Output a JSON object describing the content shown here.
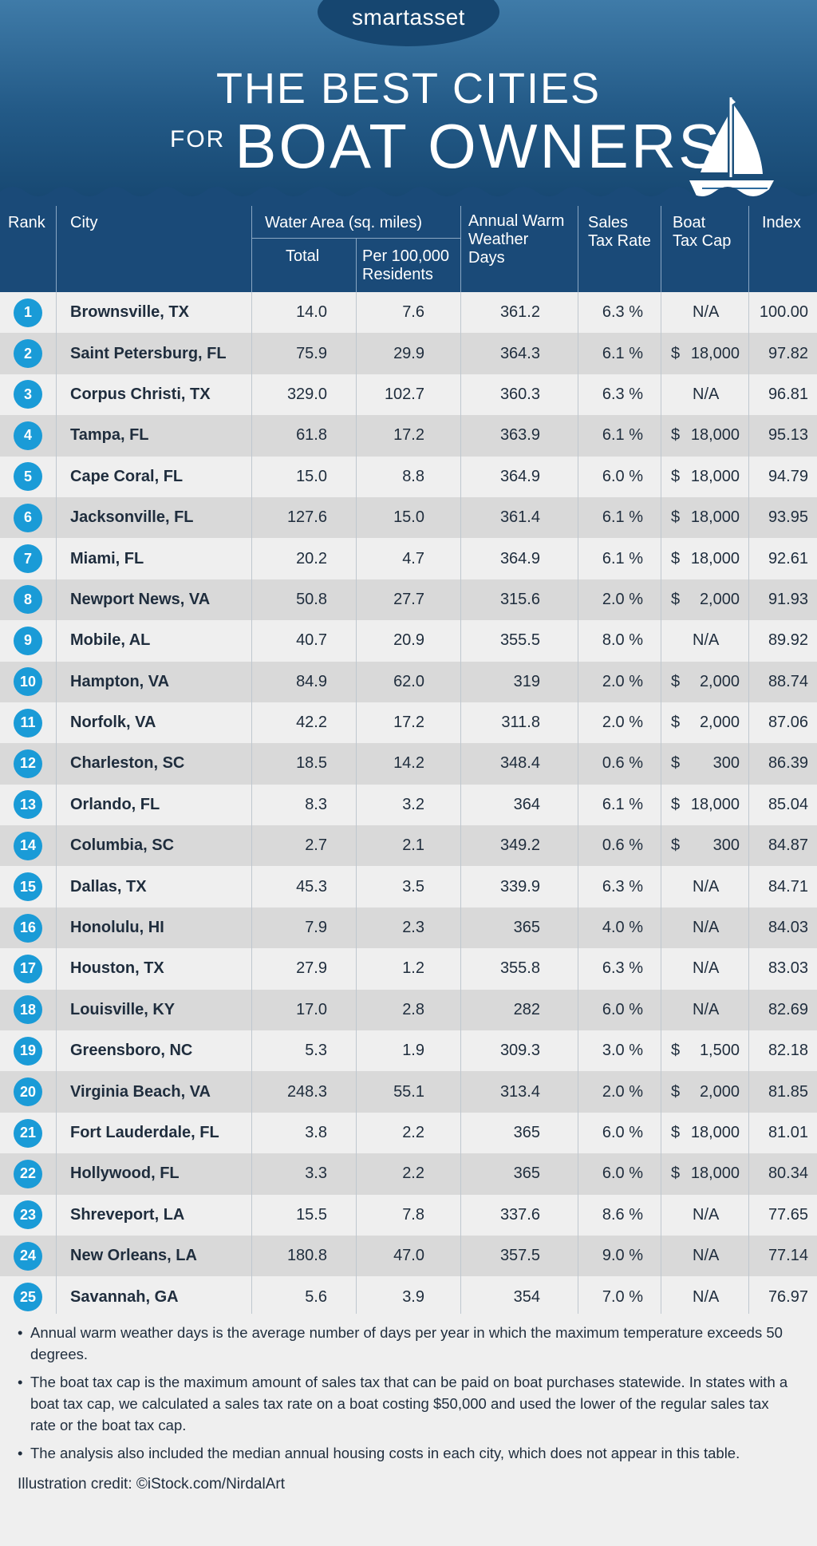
{
  "brand": "smartasset",
  "title": {
    "line1": "THE BEST CITIES",
    "line2_small": "FOR",
    "line2_big": "BOAT OWNERS"
  },
  "headers": {
    "rank": "Rank",
    "city": "City",
    "water_area": "Water Area (sq. miles)",
    "total": "Total",
    "per100k": [
      "Per 100,000",
      "Residents"
    ],
    "warm_days": [
      "Annual Warm",
      "Weather",
      "Days"
    ],
    "sales_tax": [
      "Sales",
      "Tax Rate"
    ],
    "boat_tax_cap": [
      "Boat",
      "Tax Cap"
    ],
    "index": "Index"
  },
  "rows": [
    {
      "rank": "1",
      "city": "Brownsville, TX",
      "total": "14.0",
      "per100k": "7.6",
      "warm": "361.2",
      "tax": "6.3 %",
      "cap_sym": "",
      "cap": "N/A",
      "index": "100.00"
    },
    {
      "rank": "2",
      "city": "Saint Petersburg, FL",
      "total": "75.9",
      "per100k": "29.9",
      "warm": "364.3",
      "tax": "6.1 %",
      "cap_sym": "$",
      "cap": "18,000",
      "index": "97.82"
    },
    {
      "rank": "3",
      "city": "Corpus Christi, TX",
      "total": "329.0",
      "per100k": "102.7",
      "warm": "360.3",
      "tax": "6.3 %",
      "cap_sym": "",
      "cap": "N/A",
      "index": "96.81"
    },
    {
      "rank": "4",
      "city": "Tampa, FL",
      "total": "61.8",
      "per100k": "17.2",
      "warm": "363.9",
      "tax": "6.1 %",
      "cap_sym": "$",
      "cap": "18,000",
      "index": "95.13"
    },
    {
      "rank": "5",
      "city": "Cape Coral, FL",
      "total": "15.0",
      "per100k": "8.8",
      "warm": "364.9",
      "tax": "6.0 %",
      "cap_sym": "$",
      "cap": "18,000",
      "index": "94.79"
    },
    {
      "rank": "6",
      "city": "Jacksonville, FL",
      "total": "127.6",
      "per100k": "15.0",
      "warm": "361.4",
      "tax": "6.1 %",
      "cap_sym": "$",
      "cap": "18,000",
      "index": "93.95"
    },
    {
      "rank": "7",
      "city": "Miami, FL",
      "total": "20.2",
      "per100k": "4.7",
      "warm": "364.9",
      "tax": "6.1 %",
      "cap_sym": "$",
      "cap": "18,000",
      "index": "92.61"
    },
    {
      "rank": "8",
      "city": "Newport News, VA",
      "total": "50.8",
      "per100k": "27.7",
      "warm": "315.6",
      "tax": "2.0 %",
      "cap_sym": "$",
      "cap": "2,000",
      "index": "91.93"
    },
    {
      "rank": "9",
      "city": "Mobile, AL",
      "total": "40.7",
      "per100k": "20.9",
      "warm": "355.5",
      "tax": "8.0 %",
      "cap_sym": "",
      "cap": "N/A",
      "index": "89.92"
    },
    {
      "rank": "10",
      "city": "Hampton, VA",
      "total": "84.9",
      "per100k": "62.0",
      "warm": "319",
      "tax": "2.0 %",
      "cap_sym": "$",
      "cap": "2,000",
      "index": "88.74"
    },
    {
      "rank": "11",
      "city": "Norfolk, VA",
      "total": "42.2",
      "per100k": "17.2",
      "warm": "311.8",
      "tax": "2.0 %",
      "cap_sym": "$",
      "cap": "2,000",
      "index": "87.06"
    },
    {
      "rank": "12",
      "city": "Charleston, SC",
      "total": "18.5",
      "per100k": "14.2",
      "warm": "348.4",
      "tax": "0.6 %",
      "cap_sym": "$",
      "cap": "300",
      "index": "86.39"
    },
    {
      "rank": "13",
      "city": "Orlando, FL",
      "total": "8.3",
      "per100k": "3.2",
      "warm": "364",
      "tax": "6.1 %",
      "cap_sym": "$",
      "cap": "18,000",
      "index": "85.04"
    },
    {
      "rank": "14",
      "city": "Columbia, SC",
      "total": "2.7",
      "per100k": "2.1",
      "warm": "349.2",
      "tax": "0.6 %",
      "cap_sym": "$",
      "cap": "300",
      "index": "84.87"
    },
    {
      "rank": "15",
      "city": "Dallas, TX",
      "total": "45.3",
      "per100k": "3.5",
      "warm": "339.9",
      "tax": "6.3 %",
      "cap_sym": "",
      "cap": "N/A",
      "index": "84.71"
    },
    {
      "rank": "16",
      "city": "Honolulu, HI",
      "total": "7.9",
      "per100k": "2.3",
      "warm": "365",
      "tax": "4.0 %",
      "cap_sym": "",
      "cap": "N/A",
      "index": "84.03"
    },
    {
      "rank": "17",
      "city": "Houston, TX",
      "total": "27.9",
      "per100k": "1.2",
      "warm": "355.8",
      "tax": "6.3 %",
      "cap_sym": "",
      "cap": "N/A",
      "index": "83.03"
    },
    {
      "rank": "18",
      "city": "Louisville, KY",
      "total": "17.0",
      "per100k": "2.8",
      "warm": "282",
      "tax": "6.0 %",
      "cap_sym": "",
      "cap": "N/A",
      "index": "82.69"
    },
    {
      "rank": "19",
      "city": "Greensboro, NC",
      "total": "5.3",
      "per100k": "1.9",
      "warm": "309.3",
      "tax": "3.0 %",
      "cap_sym": "$",
      "cap": "1,500",
      "index": "82.18"
    },
    {
      "rank": "20",
      "city": "Virginia Beach, VA",
      "total": "248.3",
      "per100k": "55.1",
      "warm": "313.4",
      "tax": "2.0 %",
      "cap_sym": "$",
      "cap": "2,000",
      "index": "81.85"
    },
    {
      "rank": "21",
      "city": "Fort Lauderdale, FL",
      "total": "3.8",
      "per100k": "2.2",
      "warm": "365",
      "tax": "6.0 %",
      "cap_sym": "$",
      "cap": "18,000",
      "index": "81.01"
    },
    {
      "rank": "22",
      "city": "Hollywood, FL",
      "total": "3.3",
      "per100k": "2.2",
      "warm": "365",
      "tax": "6.0 %",
      "cap_sym": "$",
      "cap": "18,000",
      "index": "80.34"
    },
    {
      "rank": "23",
      "city": "Shreveport, LA",
      "total": "15.5",
      "per100k": "7.8",
      "warm": "337.6",
      "tax": "8.6 %",
      "cap_sym": "",
      "cap": "N/A",
      "index": "77.65"
    },
    {
      "rank": "24",
      "city": "New Orleans, LA",
      "total": "180.8",
      "per100k": "47.0",
      "warm": "357.5",
      "tax": "9.0 %",
      "cap_sym": "",
      "cap": "N/A",
      "index": "77.14"
    },
    {
      "rank": "25",
      "city": "Savannah, GA",
      "total": "5.6",
      "per100k": "3.9",
      "warm": "354",
      "tax": "7.0 %",
      "cap_sym": "",
      "cap": "N/A",
      "index": "76.97"
    }
  ],
  "notes": [
    "Annual warm weather days is the average number of days per year in which the maximum temperature exceeds 50 degrees.",
    "The boat tax cap is the maximum amount of sales tax that can be paid on boat purchases statewide. In states with a boat tax cap, we calculated a sales tax rate on a boat costing $50,000 and used the lower of the regular sales tax rate or the boat tax cap.",
    "The analysis also included the median annual housing costs in each city, which does not appear in this table."
  ],
  "credit": "Illustration credit: ©iStock.com/NirdalArt",
  "colors": {
    "header_bg": "#1a4a78",
    "rank_badge": "#1a9bd7",
    "row_alt": "#d9d9d9",
    "row_plain": "#efefef"
  }
}
